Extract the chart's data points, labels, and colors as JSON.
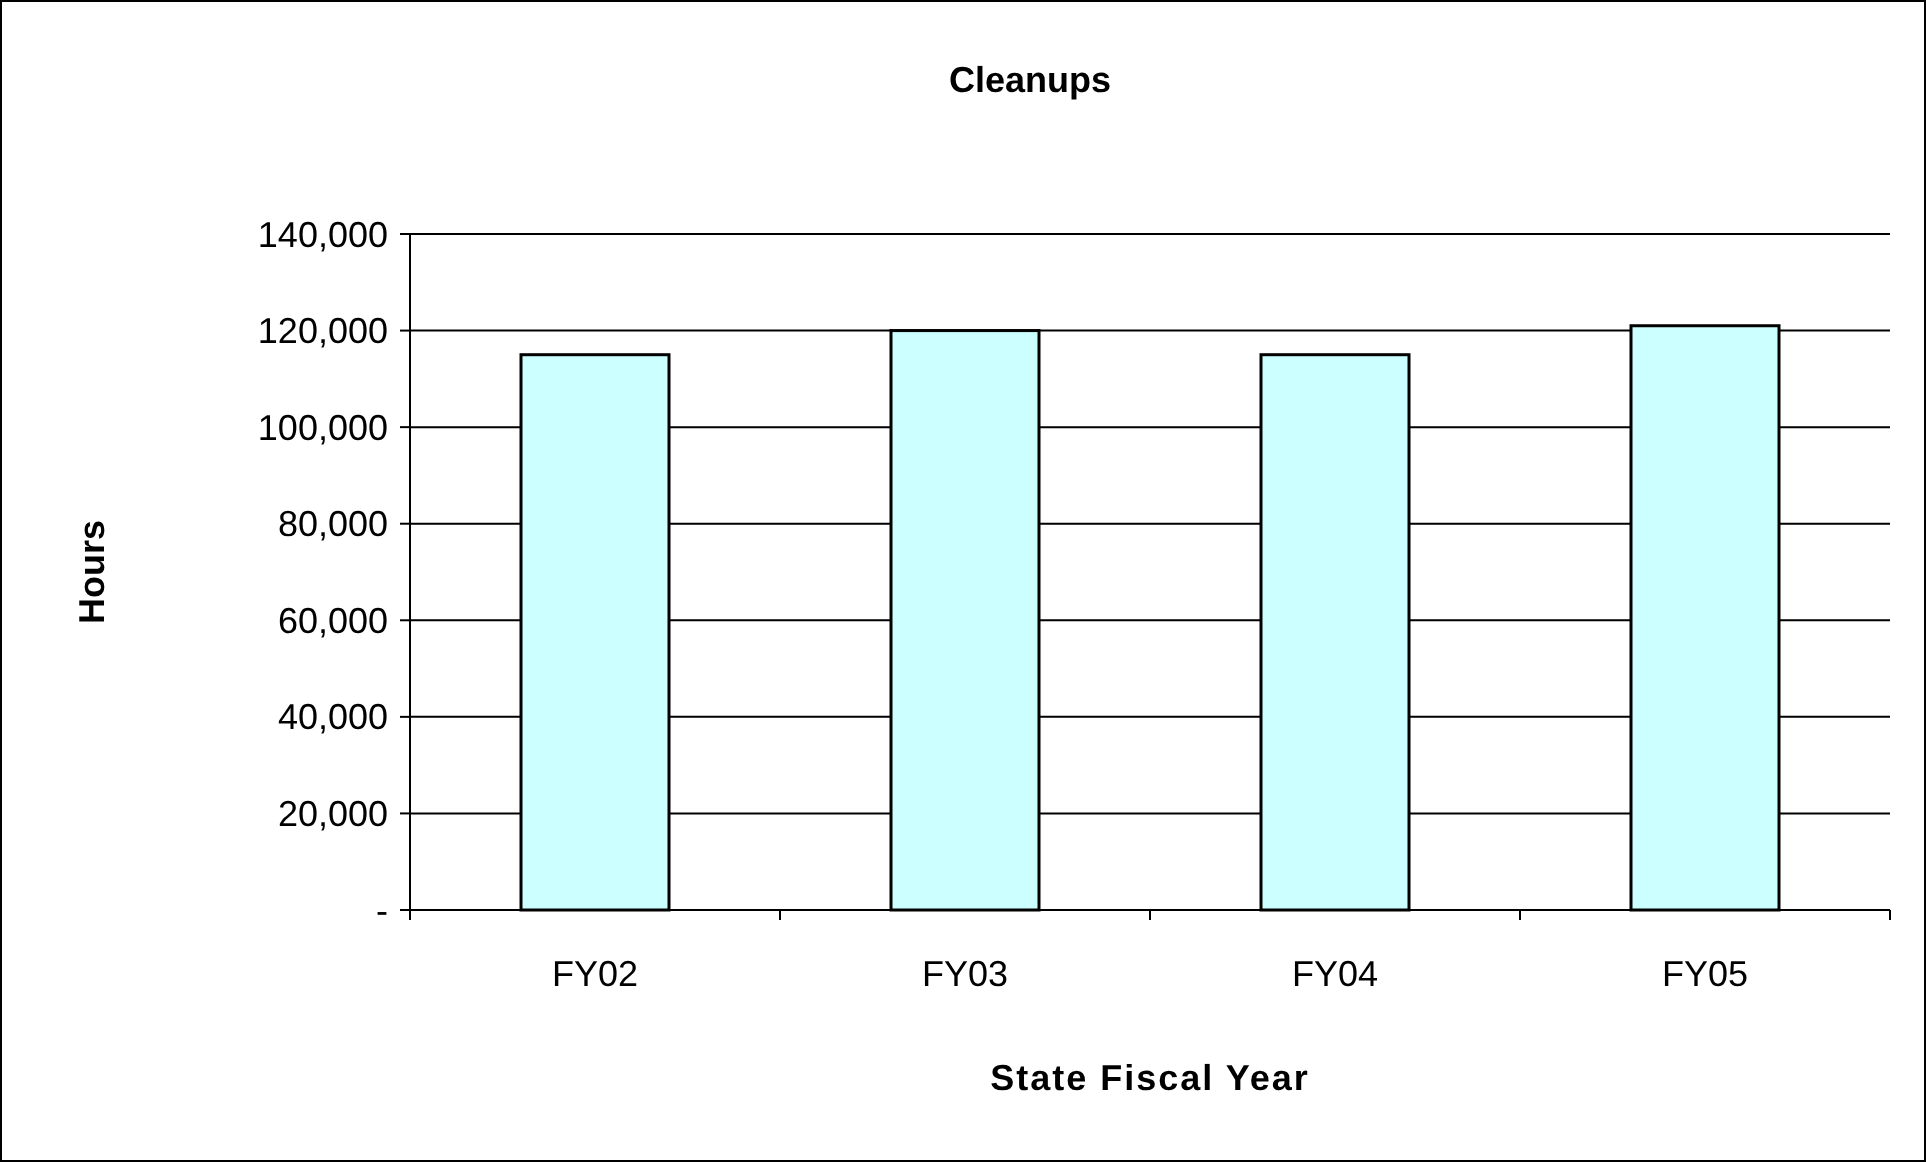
{
  "chart_data": {
    "type": "bar",
    "title": "Cleanups",
    "xlabel": "State Fiscal Year",
    "ylabel": "Hours",
    "categories": [
      "FY02",
      "FY03",
      "FY04",
      "FY05"
    ],
    "values": [
      115000,
      120000,
      115000,
      121000
    ],
    "color": "#ccffff",
    "ylim": [
      0,
      140000
    ],
    "yticks": [
      {
        "value": 0,
        "label": "-"
      },
      {
        "value": 20000,
        "label": "20,000"
      },
      {
        "value": 40000,
        "label": "40,000"
      },
      {
        "value": 60000,
        "label": "60,000"
      },
      {
        "value": 80000,
        "label": "80,000"
      },
      {
        "value": 100000,
        "label": "100,000"
      },
      {
        "value": 120000,
        "label": "120,000"
      },
      {
        "value": 140000,
        "label": "140,000"
      }
    ],
    "grid": "y"
  }
}
